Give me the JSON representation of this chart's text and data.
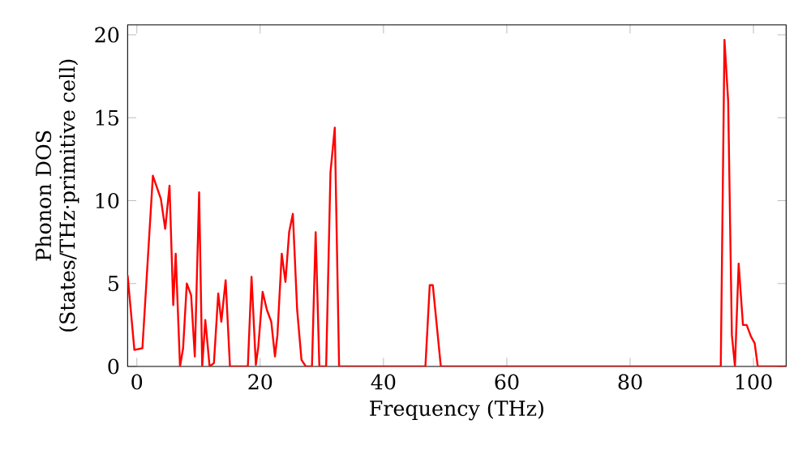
{
  "chart_data": {
    "type": "line",
    "xlabel": "Frequency (THz)",
    "ylabel": "Phonon DOS\n(States/THz·primitive cell)",
    "x": [
      -1.5,
      -0.4,
      0.9,
      2.6,
      3.9,
      4.6,
      5.3,
      5.9,
      6.3,
      7.0,
      7.5,
      8.1,
      8.8,
      9.4,
      10.1,
      10.6,
      11.1,
      11.8,
      12.5,
      13.2,
      13.7,
      14.4,
      15.1,
      18.0,
      18.6,
      19.3,
      19.7,
      20.4,
      21.1,
      21.8,
      22.4,
      22.8,
      23.5,
      24.1,
      24.7,
      25.3,
      26.0,
      26.7,
      27.4,
      28.4,
      29.0,
      29.6,
      30.7,
      31.4,
      32.1,
      32.8,
      46.8,
      47.5,
      48.0,
      49.3,
      94.7,
      95.3,
      95.9,
      96.5,
      97.0,
      97.6,
      98.3,
      98.9,
      99.6,
      100.2,
      100.7,
      105.3
    ],
    "series": [
      {
        "color": "#ff0000",
        "values": [
          5.5,
          1.0,
          1.1,
          11.5,
          10.1,
          8.3,
          10.9,
          3.7,
          6.8,
          0,
          1.1,
          5.0,
          4.3,
          0.6,
          10.5,
          0,
          2.8,
          0,
          0.2,
          4.4,
          2.7,
          5.2,
          0,
          0,
          5.4,
          0.1,
          1.2,
          4.5,
          3.4,
          2.7,
          0.6,
          1.9,
          6.8,
          5.1,
          8.1,
          9.2,
          3.4,
          0.4,
          0,
          0,
          8.1,
          0,
          0,
          11.7,
          14.4,
          0,
          0,
          4.9,
          4.9,
          0,
          0,
          19.7,
          16.0,
          1.9,
          0,
          6.2,
          2.5,
          2.5,
          1.8,
          1.4,
          0,
          0
        ]
      }
    ],
    "xlim": [
      -1.5,
      105.3
    ],
    "ylim": [
      0,
      20.6
    ],
    "xticks": [
      0,
      20,
      40,
      60,
      80,
      100
    ],
    "yticks": [
      0,
      5,
      10,
      15,
      20
    ],
    "marker": "none",
    "line_style": "solid"
  }
}
